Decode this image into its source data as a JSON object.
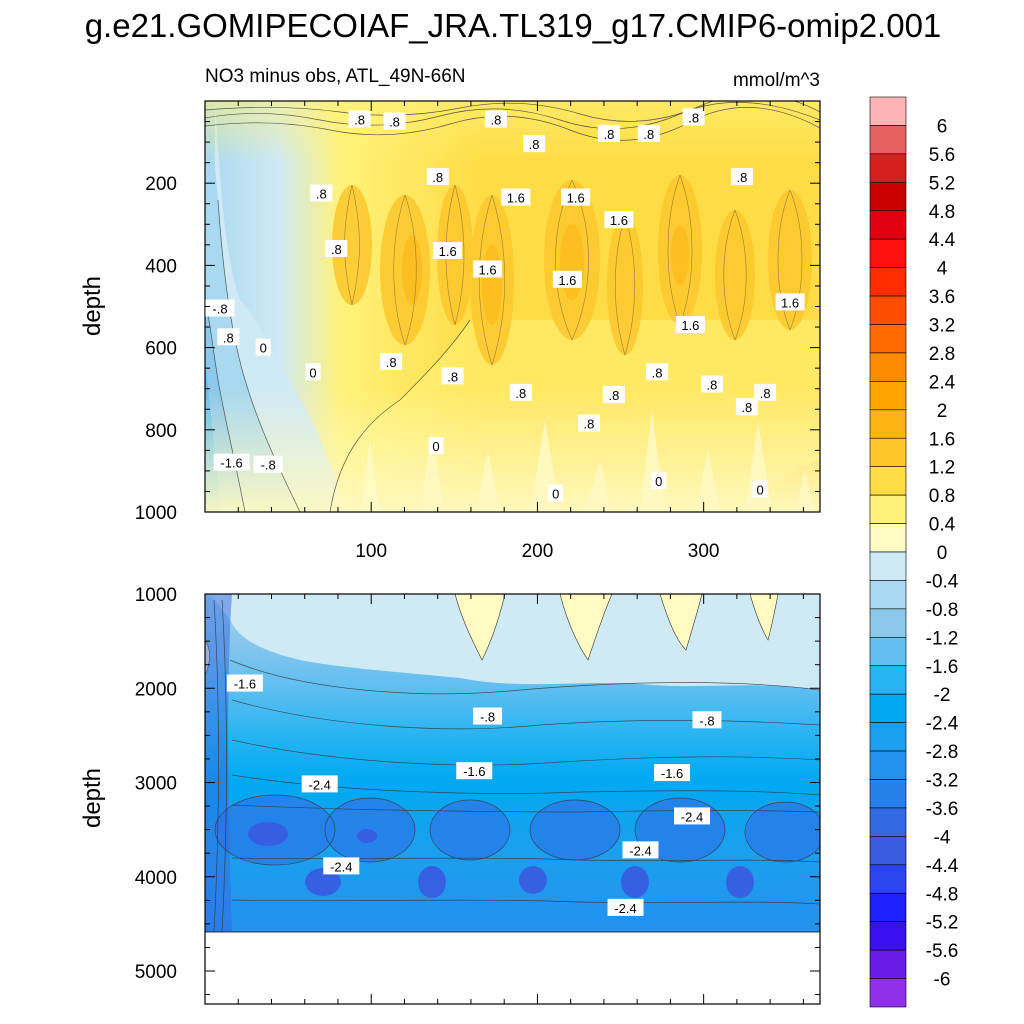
{
  "figure": {
    "title": "g.e21.GOMIPECOIAF_JRA.TL319_g17.CMIP6-omip2.001",
    "left_subtitle": "NO3 minus obs, ATL_49N-66N",
    "right_subtitle": "mmol/m^3"
  },
  "chart_data": [
    {
      "type": "contour",
      "panel": "upper",
      "title": "NO3 minus obs, ATL_49N-66N",
      "units": "mmol/m^3",
      "ylabel": "depth",
      "xlabel": "",
      "xlim": [
        0,
        370
      ],
      "ylim": [
        1000,
        0
      ],
      "xticks": [
        100,
        200,
        300
      ],
      "yticks": [
        200,
        400,
        600,
        800,
        1000
      ],
      "contour_labels": [
        {
          "text": ".8",
          "x": 93,
          "y": 45
        },
        {
          "text": ".8",
          "x": 114,
          "y": 50
        },
        {
          "text": ".8",
          "x": 175,
          "y": 45
        },
        {
          "text": ".8",
          "x": 198,
          "y": 105
        },
        {
          "text": ".8",
          "x": 243,
          "y": 80
        },
        {
          "text": ".8",
          "x": 267,
          "y": 80
        },
        {
          "text": ".8",
          "x": 294,
          "y": 40
        },
        {
          "text": ".8",
          "x": 323,
          "y": 185
        },
        {
          "text": ".8",
          "x": 140,
          "y": 185
        },
        {
          "text": ".8",
          "x": 70,
          "y": 225
        },
        {
          "text": ".8",
          "x": 79,
          "y": 360
        },
        {
          "text": "1.6",
          "x": 187,
          "y": 235
        },
        {
          "text": "1.6",
          "x": 223,
          "y": 235
        },
        {
          "text": "1.6",
          "x": 249,
          "y": 290
        },
        {
          "text": "1.6",
          "x": 146,
          "y": 365
        },
        {
          "text": "1.6",
          "x": 170,
          "y": 410
        },
        {
          "text": "1.6",
          "x": 218,
          "y": 435
        },
        {
          "text": "1.6",
          "x": 292,
          "y": 545
        },
        {
          "text": "1.6",
          "x": 352,
          "y": 490
        },
        {
          "text": "-.8",
          "x": 9,
          "y": 505
        },
        {
          "text": ".8",
          "x": 14,
          "y": 575
        },
        {
          "text": "0",
          "x": 35,
          "y": 600
        },
        {
          "text": "0",
          "x": 65,
          "y": 660
        },
        {
          "text": ".8",
          "x": 112,
          "y": 635
        },
        {
          "text": ".8",
          "x": 149,
          "y": 670
        },
        {
          "text": ".8",
          "x": 190,
          "y": 710
        },
        {
          "text": ".8",
          "x": 231,
          "y": 785
        },
        {
          "text": ".8",
          "x": 246,
          "y": 715
        },
        {
          "text": ".8",
          "x": 272,
          "y": 660
        },
        {
          "text": ".8",
          "x": 305,
          "y": 690
        },
        {
          "text": ".8",
          "x": 326,
          "y": 745
        },
        {
          "text": ".8",
          "x": 337,
          "y": 710
        },
        {
          "text": "0",
          "x": 139,
          "y": 840
        },
        {
          "text": "-1.6",
          "x": 16,
          "y": 880
        },
        {
          "text": "-.8",
          "x": 38,
          "y": 885
        },
        {
          "text": "0",
          "x": 211,
          "y": 955
        },
        {
          "text": "0",
          "x": 273,
          "y": 925
        },
        {
          "text": "0",
          "x": 334,
          "y": 945
        }
      ]
    },
    {
      "type": "contour",
      "panel": "lower",
      "ylabel": "depth",
      "xlabel": "",
      "xlim": [
        0,
        370
      ],
      "ylim": [
        5350,
        1000
      ],
      "xticks": [
        100,
        200,
        300
      ],
      "yticks": [
        1000,
        2000,
        3000,
        4000,
        5000
      ],
      "contour_labels": [
        {
          "text": "-1.6",
          "x": 24,
          "y": 1950
        },
        {
          "text": "-.8",
          "x": 170,
          "y": 2300
        },
        {
          "text": "-.8",
          "x": 302,
          "y": 2340
        },
        {
          "text": "-1.6",
          "x": 162,
          "y": 2880
        },
        {
          "text": "-1.6",
          "x": 281,
          "y": 2900
        },
        {
          "text": "-2.4",
          "x": 69,
          "y": 3020
        },
        {
          "text": "-2.4",
          "x": 293,
          "y": 3360
        },
        {
          "text": "-2.4",
          "x": 262,
          "y": 3720
        },
        {
          "text": "-2.4",
          "x": 82,
          "y": 3890
        },
        {
          "text": "-2.4",
          "x": 253,
          "y": 4330
        }
      ]
    }
  ],
  "colorbar": {
    "levels": [
      "6",
      "5.6",
      "5.2",
      "4.8",
      "4.4",
      "4",
      "3.6",
      "3.2",
      "2.8",
      "2.4",
      "2",
      "1.6",
      "1.2",
      "0.8",
      "0.4",
      "0",
      "-0.4",
      "-0.8",
      "-1.2",
      "-1.6",
      "-2",
      "-2.4",
      "-2.8",
      "-3.2",
      "-3.6",
      "-4",
      "-4.4",
      "-4.8",
      "-5.2",
      "-5.6",
      "-6"
    ],
    "colors": [
      "#ffb3b3",
      "#e86060",
      "#d62020",
      "#c80000",
      "#e00010",
      "#ff1010",
      "#ff2d00",
      "#ff4d00",
      "#ff6a00",
      "#ff8c00",
      "#ffa500",
      "#fdb515",
      "#fdc72c",
      "#fedc45",
      "#fff27a",
      "#fff9c2",
      "#cfe9f5",
      "#a8d9f0",
      "#8cc8ec",
      "#62bff0",
      "#27b4f2",
      "#00a9f2",
      "#1aa0ee",
      "#2392ee",
      "#2680ea",
      "#2f6ae2",
      "#3a5ae0",
      "#2a44f0",
      "#1f20ff",
      "#3a10ee",
      "#6a1bea",
      "#9030ea"
    ]
  }
}
